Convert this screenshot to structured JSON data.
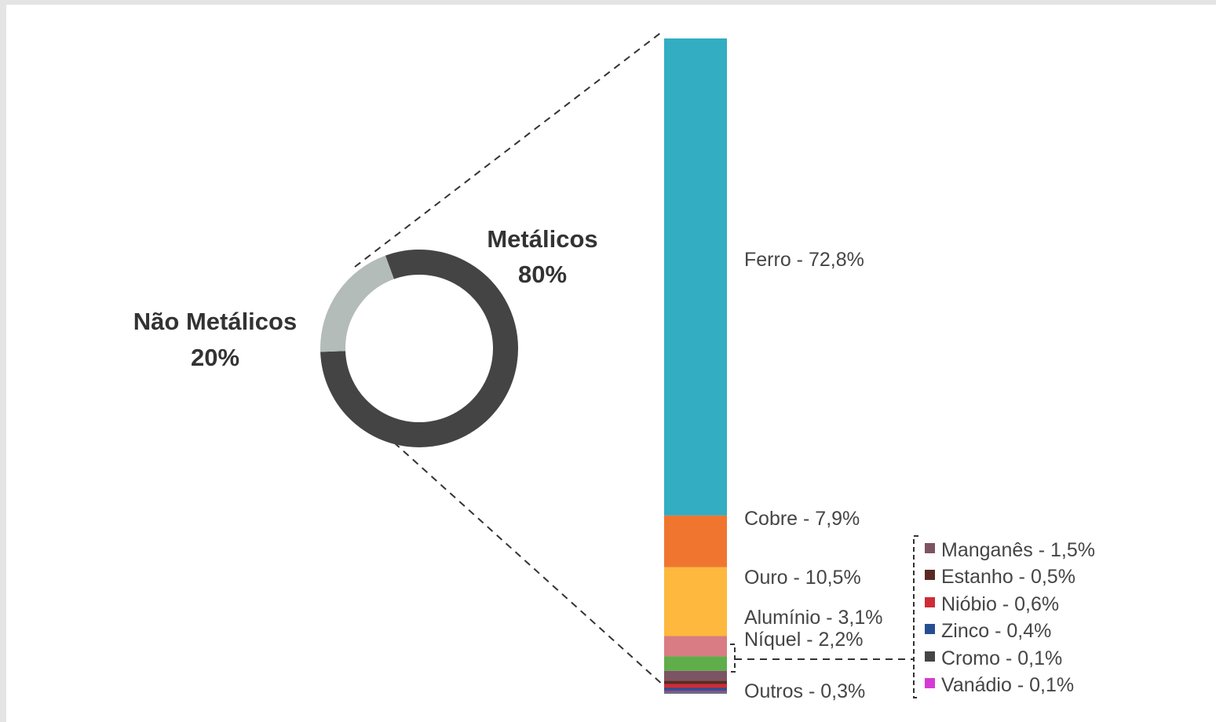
{
  "chart_data": [
    {
      "type": "pie",
      "variant": "donut",
      "slices": [
        {
          "label_line1": "Metálicos",
          "value_text": "80%",
          "value": 80,
          "color": "#444444"
        },
        {
          "label_line1": "Não Metálicos",
          "value_text": "20%",
          "value": 20,
          "color": "#b3bcb9"
        }
      ]
    },
    {
      "type": "bar",
      "variant": "stacked",
      "segments": [
        {
          "name": "Ferro",
          "value": 72.8,
          "label": "Ferro - 72,8%",
          "color": "#32adc2"
        },
        {
          "name": "Cobre",
          "value": 7.9,
          "label": "Cobre - 7,9%",
          "color": "#f07630"
        },
        {
          "name": "Ouro",
          "value": 10.5,
          "label": "Ouro - 10,5%",
          "color": "#fdb83d"
        },
        {
          "name": "Alumínio",
          "value": 3.1,
          "label": "Alumínio - 3,1%",
          "color": "#d97c83"
        },
        {
          "name": "Níquel",
          "value": 2.2,
          "label": "Níquel - 2,2%",
          "color": "#5fae49"
        },
        {
          "name": "Manganês",
          "value": 1.5,
          "label": "Manganês - 1,5%",
          "color": "#7d5463"
        },
        {
          "name": "Estanho",
          "value": 0.5,
          "label": "Estanho - 0,5%",
          "color": "#5a2a22"
        },
        {
          "name": "Nióbio",
          "value": 0.6,
          "label": "Nióbio - 0,6%",
          "color": "#cf2c36"
        },
        {
          "name": "Zinco",
          "value": 0.4,
          "label": "Zinco - 0,4%",
          "color": "#264f91"
        },
        {
          "name": "Cromo",
          "value": 0.1,
          "label": "Cromo - 0,1%",
          "color": "#454545"
        },
        {
          "name": "Vanádio",
          "value": 0.1,
          "label": "Vanádio - 0,1%",
          "color": "#d63ad4"
        },
        {
          "name": "Outros",
          "value": 0.3,
          "label": "Outros - 0,3%",
          "color": "#6a6a7a"
        }
      ]
    }
  ]
}
